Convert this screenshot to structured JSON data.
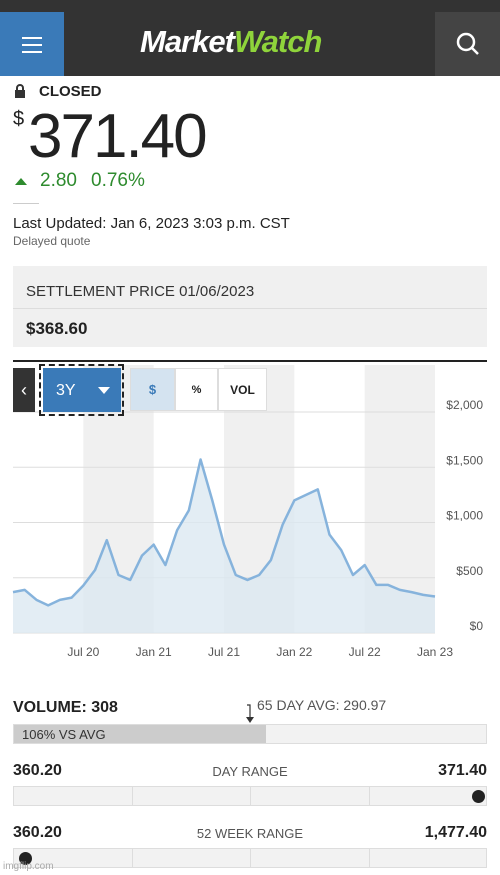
{
  "header": {
    "logo": "MarketWatch"
  },
  "quote": {
    "status": "CLOSED",
    "currency": "$",
    "price": "371.40",
    "change": "2.80",
    "change_pct": "0.76%",
    "last_updated": "Last Updated: Jan 6, 2023 3:03 p.m. CST",
    "delay": "Delayed quote"
  },
  "settlement": {
    "label": "SETTLEMENT PRICE 01/06/2023",
    "value": "$368.60"
  },
  "toolbar": {
    "range": "3Y",
    "buttons": [
      "$",
      "%",
      "VOL"
    ]
  },
  "chart_data": {
    "type": "area",
    "categories": [
      null,
      null,
      null,
      null,
      null,
      null,
      "Jul 20",
      null,
      null,
      null,
      null,
      null,
      "Jan 21",
      null,
      null,
      null,
      null,
      null,
      "Jul 21",
      null,
      null,
      null,
      null,
      null,
      "Jan 22",
      null,
      null,
      null,
      null,
      null,
      "Jul 22",
      null,
      null,
      null,
      null,
      null,
      "Jan 23"
    ],
    "values": [
      370,
      390,
      300,
      250,
      300,
      320,
      430,
      570,
      840,
      525,
      480,
      700,
      800,
      615,
      930,
      1110,
      1570,
      1200,
      800,
      525,
      480,
      525,
      660,
      980,
      1200,
      1250,
      1300,
      890,
      750,
      525,
      615,
      435,
      435,
      390,
      370,
      345,
      330
    ],
    "color": "#86b3dc",
    "fill_color": "#dce8f1",
    "ylim": [
      0,
      2000
    ],
    "yticks": [
      {
        "value": 0,
        "label": "$0"
      },
      {
        "value": 500,
        "label": "$500"
      },
      {
        "value": 1000,
        "label": "$1,000"
      },
      {
        "value": 1500,
        "label": "$1,500"
      },
      {
        "value": 2000,
        "label": "$2,000"
      }
    ],
    "grid": true
  },
  "stats": {
    "volume": "VOLUME: 308",
    "avg": "65 DAY AVG: 290.97",
    "vs_avg": "106% VS AVG",
    "day_range": {
      "low": "360.20",
      "label": "DAY RANGE",
      "high": "371.40"
    },
    "week52_range": {
      "low": "360.20",
      "label": "52 WEEK RANGE",
      "high": "1,477.40"
    }
  },
  "watermark": "imgflip.com"
}
